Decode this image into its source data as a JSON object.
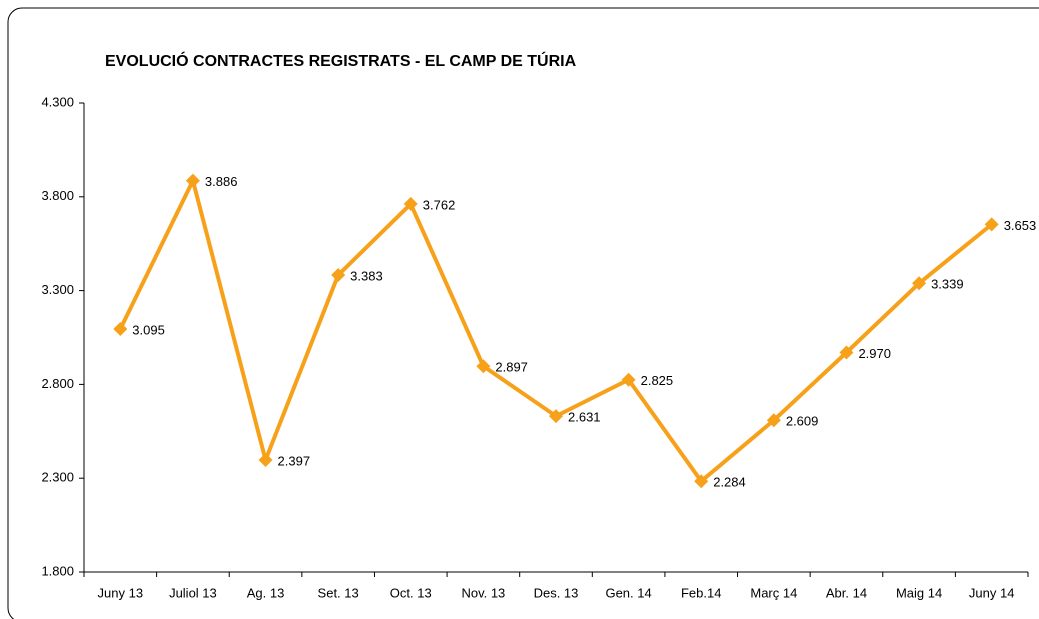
{
  "chart_data": {
    "type": "line",
    "title": "EVOLUCIÓ CONTRACTES REGISTRATS - EL CAMP DE TÚRIA",
    "categories": [
      "Juny 13",
      "Juliol 13",
      "Ag. 13",
      "Set. 13",
      "Oct. 13",
      "Nov. 13",
      "Des. 13",
      "Gen. 14",
      "Feb.14",
      "Març 14",
      "Abr. 14",
      "Maig 14",
      "Juny 14"
    ],
    "series": [
      {
        "name": "Contractes",
        "color": "#f7a11a",
        "values": [
          3095,
          3886,
          2397,
          3383,
          3762,
          2897,
          2631,
          2825,
          2284,
          2609,
          2970,
          3339,
          3653
        ],
        "value_labels": [
          "3.095",
          "3.886",
          "2.397",
          "3.383",
          "3.762",
          "2.897",
          "2.631",
          "2.825",
          "2.284",
          "2.609",
          "2.970",
          "3.339",
          "3.653"
        ]
      }
    ],
    "ylim": [
      1800,
      4300
    ],
    "yticks": [
      {
        "value": 1800,
        "label": "1.800"
      },
      {
        "value": 2300,
        "label": "2.300"
      },
      {
        "value": 2800,
        "label": "2.800"
      },
      {
        "value": 3300,
        "label": "3.300"
      },
      {
        "value": 3800,
        "label": "3.800"
      },
      {
        "value": 4300,
        "label": "4.300"
      }
    ],
    "grid": false
  }
}
